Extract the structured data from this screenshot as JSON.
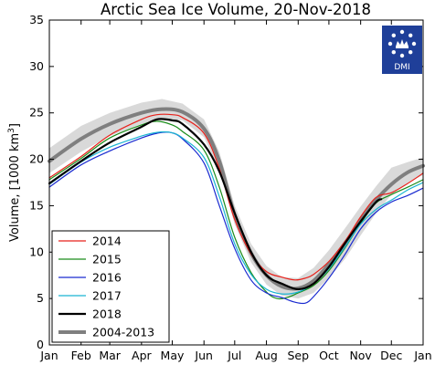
{
  "chart_data": {
    "type": "line",
    "title": "Arctic Sea Ice Volume, 20-Nov-2018",
    "ylabel_main": "Volume, [1000 km",
    "ylabel_sup": "3",
    "ylabel_end": "]",
    "xlabel": "",
    "ylim": [
      0,
      35
    ],
    "yticks": [
      0,
      5,
      10,
      15,
      20,
      25,
      30,
      35
    ],
    "xlim": [
      0,
      365
    ],
    "month_ticks": [
      {
        "label": "Jan",
        "day": 0
      },
      {
        "label": "Feb",
        "day": 31
      },
      {
        "label": "Mar",
        "day": 59
      },
      {
        "label": "Apr",
        "day": 90
      },
      {
        "label": "May",
        "day": 120
      },
      {
        "label": "Jun",
        "day": 151
      },
      {
        "label": "Jul",
        "day": 181
      },
      {
        "label": "Aug",
        "day": 212
      },
      {
        "label": "Sep",
        "day": 243
      },
      {
        "label": "Oct",
        "day": 273
      },
      {
        "label": "Nov",
        "day": 304
      },
      {
        "label": "Dec",
        "day": 334
      },
      {
        "label": "Jan",
        "day": 365
      }
    ],
    "grid": false,
    "legend_position": "bottom-left",
    "logo_text": "DMI",
    "band": {
      "x": [
        0,
        31,
        59,
        90,
        110,
        130,
        151,
        166,
        181,
        197,
        212,
        227,
        243,
        258,
        273,
        289,
        304,
        319,
        334,
        350,
        365
      ],
      "low": [
        18.5,
        20.8,
        22.5,
        23.8,
        24.3,
        24.2,
        22.4,
        18.8,
        13.0,
        8.9,
        6.5,
        5.3,
        5.0,
        5.6,
        7.2,
        9.3,
        11.8,
        14.2,
        16.2,
        17.5,
        18.3
      ],
      "high": [
        21.2,
        23.6,
        25.0,
        26.1,
        26.5,
        26.0,
        24.3,
        20.8,
        15.0,
        10.9,
        8.5,
        7.3,
        7.2,
        8.3,
        10.2,
        12.6,
        14.9,
        17.1,
        19.1,
        19.7,
        20.2
      ]
    },
    "series": [
      {
        "name": "2014",
        "color": "#e8201a",
        "width": 1.2,
        "x": [
          0,
          31,
          59,
          90,
          105,
          120,
          130,
          151,
          166,
          181,
          197,
          212,
          227,
          240,
          250,
          258,
          273,
          289,
          304,
          319,
          334,
          350,
          365
        ],
        "y": [
          18.0,
          20.3,
          22.6,
          24.3,
          24.8,
          24.8,
          24.5,
          22.8,
          19.0,
          13.5,
          9.8,
          7.9,
          7.3,
          7.0,
          7.2,
          7.6,
          9.0,
          11.2,
          13.8,
          15.9,
          16.4,
          17.4,
          18.5
        ]
      },
      {
        "name": "2015",
        "color": "#1a8c1a",
        "width": 1.2,
        "x": [
          0,
          31,
          59,
          90,
          105,
          120,
          130,
          151,
          166,
          181,
          197,
          212,
          222,
          232,
          243,
          258,
          273,
          289,
          304,
          319,
          334,
          350,
          365
        ],
        "y": [
          17.8,
          20.1,
          22.3,
          23.7,
          24.1,
          23.7,
          23.0,
          21.0,
          17.0,
          11.6,
          7.8,
          5.7,
          5.0,
          5.1,
          5.6,
          6.4,
          8.0,
          10.5,
          13.1,
          15.3,
          16.2,
          17.0,
          17.8
        ]
      },
      {
        "name": "2016",
        "color": "#1a2bd0",
        "width": 1.2,
        "x": [
          0,
          31,
          59,
          90,
          105,
          118,
          130,
          151,
          166,
          181,
          197,
          212,
          227,
          240,
          250,
          258,
          273,
          289,
          304,
          319,
          334,
          350,
          365
        ],
        "y": [
          17.0,
          19.4,
          20.9,
          22.3,
          22.8,
          22.9,
          22.2,
          19.6,
          15.0,
          10.4,
          7.0,
          5.6,
          5.1,
          4.6,
          4.5,
          5.2,
          7.2,
          9.8,
          12.5,
          14.3,
          15.4,
          16.1,
          16.9
        ]
      },
      {
        "name": "2017",
        "color": "#1ab4d2",
        "width": 1.2,
        "x": [
          0,
          31,
          59,
          90,
          105,
          118,
          130,
          151,
          166,
          181,
          197,
          212,
          227,
          243,
          258,
          273,
          289,
          304,
          319,
          334,
          350,
          365
        ],
        "y": [
          17.3,
          19.7,
          21.3,
          22.5,
          22.9,
          22.9,
          22.3,
          20.2,
          16.0,
          10.9,
          7.6,
          6.0,
          5.5,
          5.7,
          6.6,
          8.2,
          10.6,
          13.0,
          14.6,
          15.6,
          16.7,
          17.5
        ]
      },
      {
        "name": "2018",
        "color": "#000000",
        "width": 2.2,
        "x": [
          0,
          31,
          59,
          90,
          105,
          120,
          130,
          151,
          166,
          181,
          197,
          212,
          227,
          243,
          258,
          273,
          289,
          304,
          319,
          324
        ],
        "y": [
          17.4,
          19.8,
          21.8,
          23.5,
          24.3,
          24.2,
          23.8,
          21.6,
          18.7,
          14.2,
          10.0,
          7.5,
          6.6,
          6.0,
          6.6,
          8.4,
          11.0,
          13.3,
          15.4,
          15.7
        ]
      },
      {
        "name": "2004-2013",
        "color": "#7f7f7f",
        "width": 4,
        "x": [
          0,
          31,
          59,
          90,
          110,
          130,
          151,
          166,
          181,
          197,
          212,
          227,
          243,
          258,
          273,
          289,
          304,
          319,
          334,
          350,
          365
        ],
        "y": [
          19.8,
          22.2,
          23.8,
          25.0,
          25.4,
          25.1,
          23.3,
          19.8,
          14.0,
          9.9,
          7.5,
          6.3,
          6.1,
          6.9,
          8.7,
          11.0,
          13.4,
          15.6,
          17.3,
          18.6,
          19.3
        ]
      }
    ]
  }
}
